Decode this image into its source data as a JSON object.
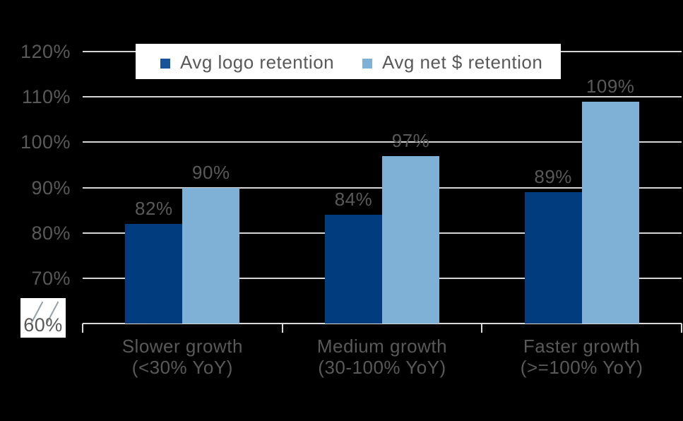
{
  "colors": {
    "background": "#000000",
    "text": "#595959",
    "grid": "#D6D6D6",
    "axis": "#D9D9D9",
    "legend_background": "#FFFFFF",
    "axis_break_background": "#FFFFFF",
    "axis_break_slash": "#93A1A8",
    "bar_dark": "#003C7E",
    "bar_light": "#7FB0D6",
    "legend_swatch_dark": "#19549B",
    "legend_swatch_light": "#7FB0D6"
  },
  "legend": {
    "items": [
      {
        "label": "Avg logo retention",
        "swatch": "#19549B"
      },
      {
        "label": "Avg net $ retention",
        "swatch": "#7FB0D6"
      }
    ]
  },
  "chart_data": {
    "type": "bar",
    "title": "",
    "xlabel": "",
    "ylabel": "",
    "categories": [
      {
        "line1": "Slower growth",
        "line2": "(<30% YoY)"
      },
      {
        "line1": "Medium growth",
        "line2": "(30-100% YoY)"
      },
      {
        "line1": "Faster growth",
        "line2": "(>=100% YoY)"
      }
    ],
    "series": [
      {
        "name": "Avg logo retention",
        "color": "#003C7E",
        "values": [
          82,
          84,
          89
        ],
        "labels": [
          "82%",
          "84%",
          "89%"
        ]
      },
      {
        "name": "Avg net $ retention",
        "color": "#7FB0D6",
        "values": [
          90,
          97,
          109
        ],
        "labels": [
          "90%",
          "97%",
          "109%"
        ]
      }
    ],
    "value_suffix": "%",
    "ylim": [
      60,
      120
    ],
    "y_axis": {
      "ticks": [
        {
          "value": 120,
          "label": "120%"
        },
        {
          "value": 110,
          "label": "110%"
        },
        {
          "value": 100,
          "label": "100%"
        },
        {
          "value": 90,
          "label": "90%"
        },
        {
          "value": 80,
          "label": "80%"
        },
        {
          "value": 70,
          "label": "70%"
        },
        {
          "value": 60,
          "label": "60%",
          "axis_break": true
        }
      ]
    },
    "grid": "horizontal",
    "legend_position": "top-inside",
    "axis_break_at_bottom": true
  }
}
